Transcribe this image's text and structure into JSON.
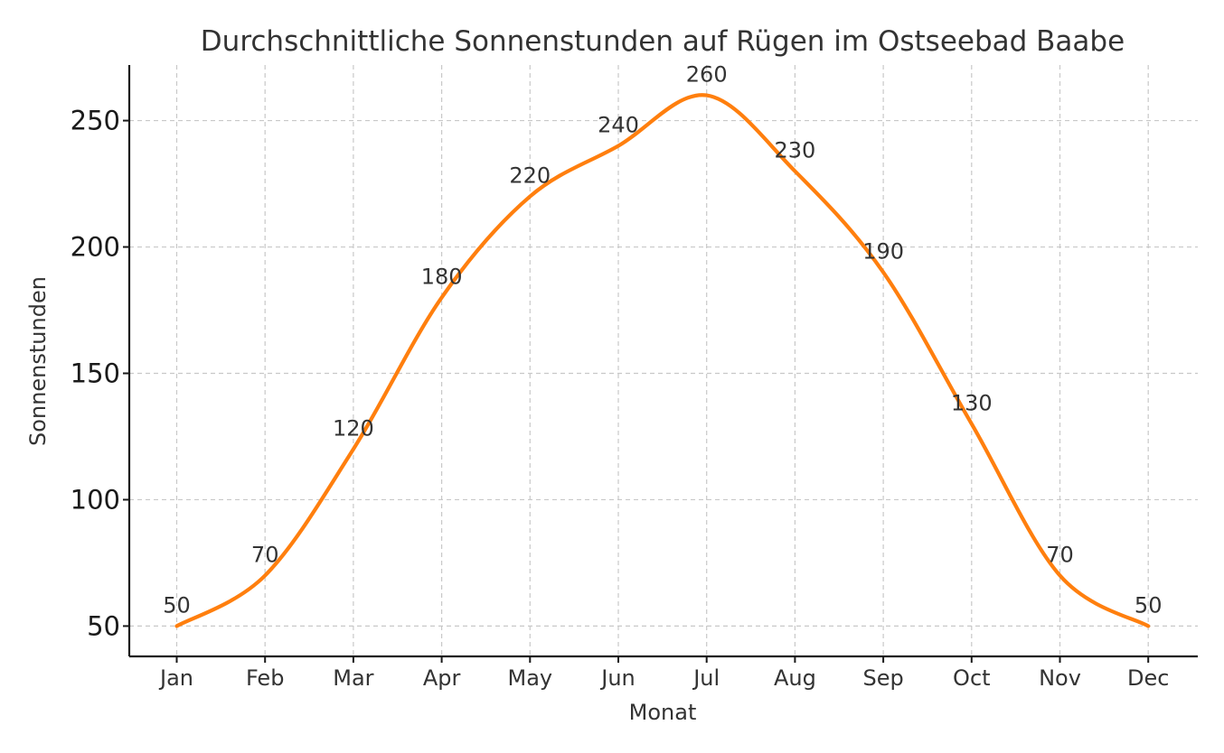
{
  "chart_data": {
    "type": "line",
    "title": "Durchschnittliche Sonnenstunden auf Rügen im Ostseebad Baabe",
    "xlabel": "Monat",
    "ylabel": "Sonnenstunden",
    "categories": [
      "Jan",
      "Feb",
      "Mar",
      "Apr",
      "May",
      "Jun",
      "Jul",
      "Aug",
      "Sep",
      "Oct",
      "Nov",
      "Dec"
    ],
    "series": [
      {
        "values": [
          50,
          70,
          120,
          180,
          220,
          240,
          260,
          230,
          190,
          130,
          70,
          50
        ],
        "color": "#ff7f0e"
      }
    ],
    "ylim": [
      38,
      272
    ],
    "yticks": [
      50,
      100,
      150,
      200,
      250
    ],
    "smooth": true,
    "grid": true,
    "data_labels": true
  }
}
